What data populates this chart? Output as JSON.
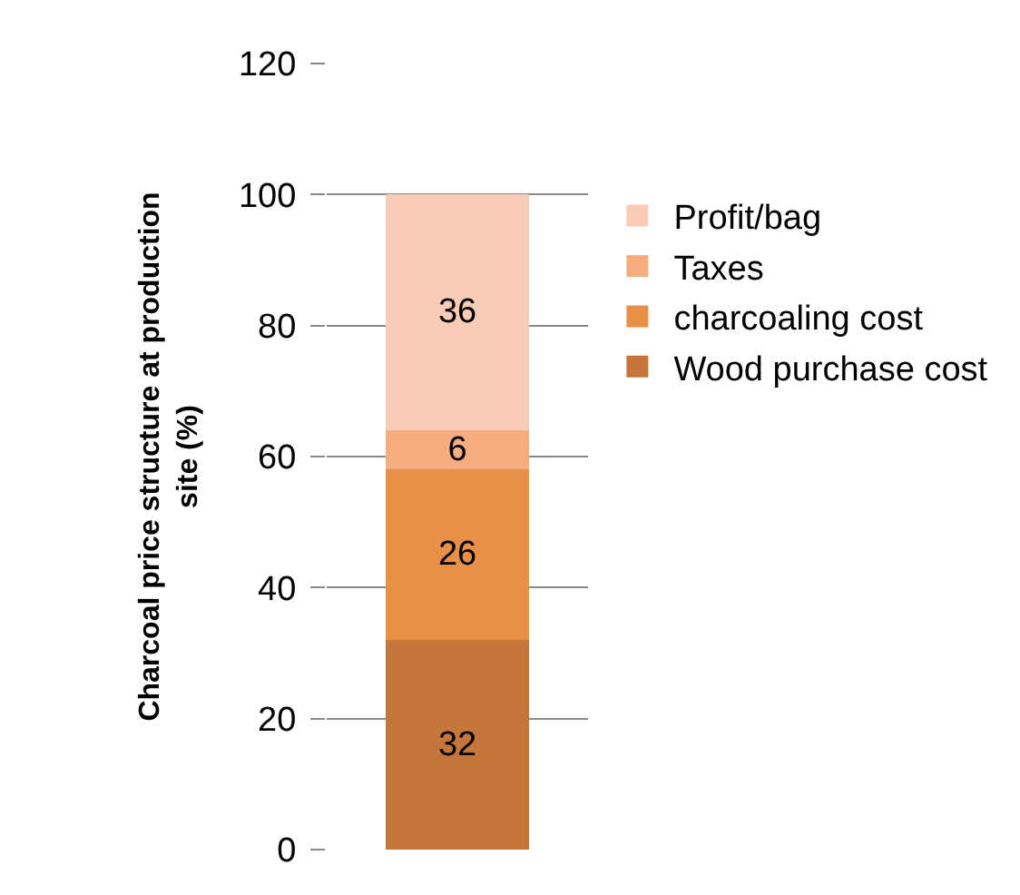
{
  "chart_data": {
    "type": "bar",
    "stacked": true,
    "ylabel": "Charcoal price structure at production site (%)",
    "categories": [
      null
    ],
    "series": [
      {
        "name": "Wood purchase cost",
        "color": "#c5763a",
        "values": [
          32
        ]
      },
      {
        "name": "charcoaling cost",
        "color": "#e99048",
        "values": [
          26
        ]
      },
      {
        "name": "Taxes",
        "color": "#f6ad80",
        "values": [
          6
        ]
      },
      {
        "name": "Profit/bag",
        "color": "#f9ccb5",
        "values": [
          36
        ]
      }
    ],
    "ylim": [
      0,
      120
    ],
    "yticks": [
      0,
      20,
      40,
      60,
      80,
      100,
      120
    ],
    "grid": "y",
    "legend": "right",
    "data_labels": true,
    "tick_labels": "y"
  }
}
